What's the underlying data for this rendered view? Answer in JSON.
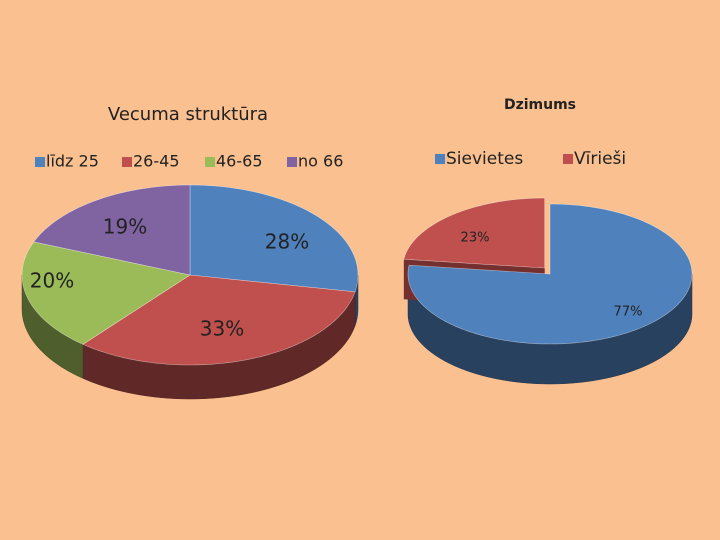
{
  "chart_data": [
    {
      "type": "pie",
      "title": "Vecuma struktūra",
      "categories": [
        "līdz 25",
        "26-45",
        "46-65",
        "no 66"
      ],
      "values": [
        28,
        33,
        20,
        19
      ],
      "value_labels": [
        "28%",
        "33%",
        "20%",
        "19%"
      ],
      "colors": [
        "#4f81bd",
        "#c0504d",
        "#9bbb59",
        "#8064a2"
      ],
      "legend": "top"
    },
    {
      "type": "pie",
      "title": "Dzimums",
      "categories": [
        "Sievietes",
        "Vīrieši"
      ],
      "values": [
        77,
        23
      ],
      "value_labels": [
        "77%",
        "23%"
      ],
      "colors": [
        "#4f81bd",
        "#c0504d"
      ],
      "legend": "top"
    }
  ]
}
